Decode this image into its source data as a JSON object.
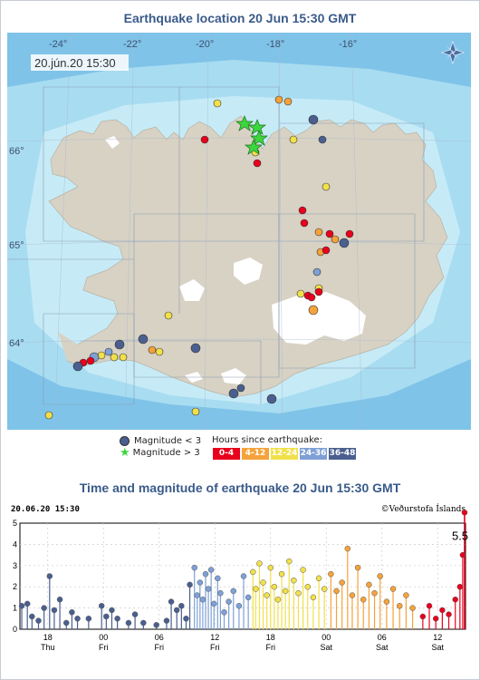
{
  "map_panel": {
    "title": "Earthquake location   20 Jun 15:30 GMT",
    "date_label": "20.jún.20 15:30",
    "lon_labels": [
      "-24°",
      "-22°",
      "-20°",
      "-18°",
      "-16°"
    ],
    "lat_labels": [
      "66°",
      "65°",
      "64°"
    ]
  },
  "legend": {
    "small_label": "Magnitude < 3",
    "large_label": "Magnitude > 3",
    "hours_title": "Hours since earthquake:",
    "hours": [
      {
        "label": "0-4",
        "color": "#e8001c"
      },
      {
        "label": "4-12",
        "color": "#f5a23a"
      },
      {
        "label": "12-24",
        "color": "#f1e04a"
      },
      {
        "label": "24-36",
        "color": "#7ea0d6"
      },
      {
        "label": "36-48",
        "color": "#4a5f8f"
      }
    ]
  },
  "time_panel": {
    "title": "Time and magnitude of earthquake   20 Jun 15:30 GMT",
    "timestamp": "20.06.20 15:30",
    "credit": "©Veðurstofa Íslands",
    "max_label": "5.5"
  },
  "chart_data": {
    "type": "scatter",
    "y_ticks": [
      "5",
      "4",
      "3",
      "2",
      "1",
      "0"
    ],
    "ylim": [
      0,
      5
    ],
    "x_ticks": [
      {
        "top": "18",
        "bottom": "Thu"
      },
      {
        "top": "00",
        "bottom": "Fri"
      },
      {
        "top": "06",
        "bottom": "Fri"
      },
      {
        "top": "12",
        "bottom": "Fri"
      },
      {
        "top": "18",
        "bottom": "Fri"
      },
      {
        "top": "00",
        "bottom": "Sat"
      },
      {
        "top": "06",
        "bottom": "Sat"
      },
      {
        "top": "12",
        "bottom": "Sat"
      }
    ],
    "highlight": {
      "t": 47.9,
      "m": 5.5
    },
    "events": [
      {
        "t": 0.2,
        "m": 1.1,
        "c": 4
      },
      {
        "t": 0.8,
        "m": 1.2,
        "c": 4
      },
      {
        "t": 1.3,
        "m": 0.6,
        "c": 4
      },
      {
        "t": 2.0,
        "m": 0.4,
        "c": 4
      },
      {
        "t": 2.6,
        "m": 1.0,
        "c": 4
      },
      {
        "t": 3.2,
        "m": 2.5,
        "c": 4
      },
      {
        "t": 3.7,
        "m": 0.9,
        "c": 4
      },
      {
        "t": 4.3,
        "m": 1.4,
        "c": 4
      },
      {
        "t": 5.0,
        "m": 0.3,
        "c": 4
      },
      {
        "t": 5.6,
        "m": 0.8,
        "c": 4
      },
      {
        "t": 6.2,
        "m": 0.5,
        "c": 4
      },
      {
        "t": 7.4,
        "m": 0.5,
        "c": 4
      },
      {
        "t": 8.8,
        "m": 1.1,
        "c": 4
      },
      {
        "t": 9.3,
        "m": 0.6,
        "c": 4
      },
      {
        "t": 9.9,
        "m": 0.9,
        "c": 4
      },
      {
        "t": 10.5,
        "m": 0.5,
        "c": 4
      },
      {
        "t": 11.7,
        "m": 0.3,
        "c": 4
      },
      {
        "t": 12.4,
        "m": 0.7,
        "c": 4
      },
      {
        "t": 13.3,
        "m": 0.3,
        "c": 4
      },
      {
        "t": 14.7,
        "m": 0.2,
        "c": 4
      },
      {
        "t": 15.8,
        "m": 0.4,
        "c": 4
      },
      {
        "t": 16.3,
        "m": 1.3,
        "c": 4
      },
      {
        "t": 16.9,
        "m": 0.9,
        "c": 4
      },
      {
        "t": 17.4,
        "m": 1.1,
        "c": 4
      },
      {
        "t": 17.9,
        "m": 0.5,
        "c": 4
      },
      {
        "t": 18.3,
        "m": 2.1,
        "c": 4
      },
      {
        "t": 18.8,
        "m": 2.9,
        "c": 3
      },
      {
        "t": 19.1,
        "m": 1.6,
        "c": 3
      },
      {
        "t": 19.4,
        "m": 2.2,
        "c": 3
      },
      {
        "t": 19.7,
        "m": 1.4,
        "c": 3
      },
      {
        "t": 20.0,
        "m": 2.6,
        "c": 3
      },
      {
        "t": 20.3,
        "m": 1.9,
        "c": 3
      },
      {
        "t": 20.6,
        "m": 2.8,
        "c": 3
      },
      {
        "t": 20.9,
        "m": 1.2,
        "c": 3
      },
      {
        "t": 21.3,
        "m": 2.4,
        "c": 3
      },
      {
        "t": 21.6,
        "m": 1.7,
        "c": 3
      },
      {
        "t": 22.0,
        "m": 0.8,
        "c": 3
      },
      {
        "t": 22.5,
        "m": 1.3,
        "c": 3
      },
      {
        "t": 23.0,
        "m": 1.8,
        "c": 3
      },
      {
        "t": 23.6,
        "m": 1.1,
        "c": 3
      },
      {
        "t": 24.1,
        "m": 2.5,
        "c": 3
      },
      {
        "t": 24.6,
        "m": 1.5,
        "c": 3
      },
      {
        "t": 25.1,
        "m": 2.7,
        "c": 2
      },
      {
        "t": 25.4,
        "m": 1.9,
        "c": 2
      },
      {
        "t": 25.8,
        "m": 3.1,
        "c": 2
      },
      {
        "t": 26.2,
        "m": 2.2,
        "c": 2
      },
      {
        "t": 26.6,
        "m": 1.6,
        "c": 2
      },
      {
        "t": 27.0,
        "m": 2.9,
        "c": 2
      },
      {
        "t": 27.4,
        "m": 2.0,
        "c": 2
      },
      {
        "t": 27.8,
        "m": 1.4,
        "c": 2
      },
      {
        "t": 28.2,
        "m": 2.6,
        "c": 2
      },
      {
        "t": 28.6,
        "m": 1.8,
        "c": 2
      },
      {
        "t": 29.0,
        "m": 3.2,
        "c": 2
      },
      {
        "t": 29.5,
        "m": 2.3,
        "c": 2
      },
      {
        "t": 30.0,
        "m": 1.7,
        "c": 2
      },
      {
        "t": 30.5,
        "m": 2.8,
        "c": 2
      },
      {
        "t": 31.0,
        "m": 2.0,
        "c": 2
      },
      {
        "t": 31.6,
        "m": 1.5,
        "c": 2
      },
      {
        "t": 32.2,
        "m": 2.4,
        "c": 2
      },
      {
        "t": 32.8,
        "m": 1.9,
        "c": 2
      },
      {
        "t": 33.5,
        "m": 2.6,
        "c": 1
      },
      {
        "t": 34.1,
        "m": 1.8,
        "c": 1
      },
      {
        "t": 34.7,
        "m": 2.2,
        "c": 1
      },
      {
        "t": 35.3,
        "m": 3.8,
        "c": 1
      },
      {
        "t": 35.8,
        "m": 1.6,
        "c": 1
      },
      {
        "t": 36.4,
        "m": 2.9,
        "c": 1
      },
      {
        "t": 37.0,
        "m": 1.4,
        "c": 1
      },
      {
        "t": 37.6,
        "m": 2.1,
        "c": 1
      },
      {
        "t": 38.2,
        "m": 1.7,
        "c": 1
      },
      {
        "t": 38.8,
        "m": 2.5,
        "c": 1
      },
      {
        "t": 39.5,
        "m": 1.3,
        "c": 1
      },
      {
        "t": 40.2,
        "m": 1.9,
        "c": 1
      },
      {
        "t": 40.9,
        "m": 1.1,
        "c": 1
      },
      {
        "t": 41.6,
        "m": 1.6,
        "c": 1
      },
      {
        "t": 42.3,
        "m": 1.0,
        "c": 1
      },
      {
        "t": 43.4,
        "m": 0.6,
        "c": 0
      },
      {
        "t": 44.1,
        "m": 1.1,
        "c": 0
      },
      {
        "t": 44.8,
        "m": 0.5,
        "c": 0
      },
      {
        "t": 45.5,
        "m": 0.9,
        "c": 0
      },
      {
        "t": 46.2,
        "m": 0.7,
        "c": 0
      },
      {
        "t": 46.9,
        "m": 1.4,
        "c": 0
      },
      {
        "t": 47.4,
        "m": 2.0,
        "c": 0
      },
      {
        "t": 47.7,
        "m": 3.5,
        "c": 0
      },
      {
        "t": 47.9,
        "m": 5.5,
        "c": 0
      }
    ]
  }
}
